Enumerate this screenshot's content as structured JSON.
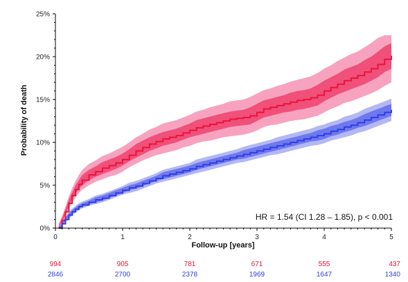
{
  "chart_data": {
    "type": "line",
    "xlabel": "Follow-up [years]",
    "ylabel": "Probability of death",
    "xlim": [
      0,
      5
    ],
    "ylim": [
      0,
      25
    ],
    "x_ticks": [
      "0",
      "1",
      "2",
      "3",
      "4",
      "5"
    ],
    "y_ticks": [
      "0%",
      "5%",
      "10%",
      "15%",
      "20%",
      "25%"
    ],
    "annotation": "HR = 1.54 (CI 1.28 – 1.85), p < 0.001",
    "grid": false,
    "series": [
      {
        "color": "#e8143c",
        "band_inner_color": "#f0507a",
        "band_outer_color": "#f7a3c0",
        "x": [
          0.05,
          0.1,
          0.15,
          0.2,
          0.25,
          0.3,
          0.35,
          0.4,
          0.5,
          0.6,
          0.7,
          0.8,
          0.9,
          1.0,
          1.1,
          1.2,
          1.3,
          1.4,
          1.5,
          1.6,
          1.7,
          1.8,
          1.9,
          2.0,
          2.1,
          2.2,
          2.3,
          2.4,
          2.5,
          2.6,
          2.7,
          2.8,
          2.9,
          3.0,
          3.1,
          3.2,
          3.3,
          3.4,
          3.5,
          3.6,
          3.7,
          3.8,
          3.9,
          4.0,
          4.1,
          4.2,
          4.3,
          4.4,
          4.5,
          4.6,
          4.7,
          4.8,
          4.9,
          5.0
        ],
        "y": [
          0.1,
          0.9,
          1.9,
          2.9,
          3.8,
          4.5,
          5.1,
          5.6,
          6.2,
          6.6,
          7.0,
          7.3,
          7.6,
          8.0,
          8.5,
          9.0,
          9.4,
          9.8,
          10.1,
          10.4,
          10.6,
          10.8,
          11.1,
          11.4,
          11.7,
          11.9,
          12.1,
          12.3,
          12.5,
          12.7,
          12.8,
          12.9,
          13.1,
          13.5,
          13.9,
          14.1,
          14.3,
          14.5,
          14.7,
          14.9,
          15.0,
          15.2,
          15.5,
          16.0,
          16.4,
          16.8,
          17.2,
          17.5,
          17.8,
          18.2,
          18.6,
          19.1,
          19.7,
          20.1
        ],
        "ci_inner_low": [
          0.0,
          0.7,
          1.6,
          2.5,
          3.4,
          4.0,
          4.6,
          5.0,
          5.6,
          6.0,
          6.3,
          6.6,
          6.9,
          7.3,
          7.8,
          8.2,
          8.6,
          9.0,
          9.3,
          9.6,
          9.8,
          10.0,
          10.3,
          10.6,
          10.8,
          11.0,
          11.2,
          11.4,
          11.6,
          11.8,
          11.9,
          12.0,
          12.1,
          12.5,
          12.9,
          13.1,
          13.3,
          13.5,
          13.6,
          13.8,
          13.9,
          14.1,
          14.3,
          14.8,
          15.2,
          15.6,
          15.9,
          16.2,
          16.5,
          16.8,
          17.2,
          17.6,
          18.2,
          18.6
        ],
        "ci_inner_high": [
          0.3,
          1.2,
          2.2,
          3.3,
          4.2,
          5.0,
          5.6,
          6.2,
          6.8,
          7.2,
          7.7,
          8.0,
          8.3,
          8.7,
          9.2,
          9.8,
          10.2,
          10.6,
          10.9,
          11.2,
          11.4,
          11.6,
          11.9,
          12.2,
          12.6,
          12.8,
          13.0,
          13.2,
          13.4,
          13.6,
          13.7,
          13.8,
          14.1,
          14.5,
          14.9,
          15.1,
          15.3,
          15.5,
          15.8,
          16.0,
          16.1,
          16.3,
          16.7,
          17.2,
          17.6,
          18.0,
          18.5,
          18.8,
          19.1,
          19.6,
          20.0,
          20.6,
          21.2,
          21.6
        ],
        "ci_outer_low": [
          0.0,
          0.5,
          1.3,
          2.2,
          3.0,
          3.6,
          4.1,
          4.5,
          5.0,
          5.4,
          5.7,
          6.0,
          6.2,
          6.6,
          7.1,
          7.5,
          7.9,
          8.2,
          8.5,
          8.7,
          8.9,
          9.1,
          9.4,
          9.6,
          9.9,
          10.1,
          10.2,
          10.4,
          10.6,
          10.7,
          10.8,
          10.9,
          11.1,
          11.4,
          11.8,
          12.0,
          12.1,
          12.3,
          12.5,
          12.6,
          12.7,
          12.9,
          13.1,
          13.5,
          13.9,
          14.2,
          14.6,
          14.8,
          15.1,
          15.4,
          15.7,
          16.1,
          16.6,
          17.0
        ],
        "ci_outer_high": [
          0.5,
          1.4,
          2.5,
          3.7,
          4.7,
          5.5,
          6.2,
          6.8,
          7.5,
          7.9,
          8.4,
          8.7,
          9.1,
          9.5,
          10.0,
          10.6,
          11.0,
          11.5,
          11.8,
          12.2,
          12.4,
          12.6,
          12.9,
          13.2,
          13.6,
          13.8,
          14.1,
          14.3,
          14.5,
          14.8,
          14.9,
          15.0,
          15.3,
          15.7,
          16.1,
          16.3,
          16.6,
          16.8,
          17.1,
          17.3,
          17.5,
          17.7,
          18.1,
          18.6,
          19.0,
          19.5,
          19.9,
          20.3,
          20.6,
          21.1,
          21.6,
          22.2,
          22.5,
          22.5
        ],
        "at_risk": [
          "994",
          "905",
          "781",
          "671",
          "555",
          "437"
        ]
      },
      {
        "color": "#2e3de6",
        "band_inner_color": "#6f78ee",
        "band_outer_color": "#b3b8f5",
        "x": [
          0.05,
          0.1,
          0.15,
          0.2,
          0.25,
          0.3,
          0.35,
          0.4,
          0.5,
          0.6,
          0.7,
          0.8,
          0.9,
          1.0,
          1.1,
          1.2,
          1.3,
          1.4,
          1.5,
          1.6,
          1.7,
          1.8,
          1.9,
          2.0,
          2.1,
          2.2,
          2.3,
          2.4,
          2.5,
          2.6,
          2.7,
          2.8,
          2.9,
          3.0,
          3.1,
          3.2,
          3.3,
          3.4,
          3.5,
          3.6,
          3.7,
          3.8,
          3.9,
          4.0,
          4.1,
          4.2,
          4.3,
          4.4,
          4.5,
          4.6,
          4.7,
          4.8,
          4.9,
          5.0
        ],
        "y": [
          0.0,
          0.5,
          1.0,
          1.5,
          1.9,
          2.2,
          2.5,
          2.7,
          3.0,
          3.3,
          3.5,
          3.8,
          4.1,
          4.4,
          4.7,
          4.9,
          5.2,
          5.5,
          5.8,
          6.1,
          6.3,
          6.5,
          6.7,
          6.9,
          7.2,
          7.4,
          7.6,
          7.8,
          8.0,
          8.2,
          8.4,
          8.6,
          8.8,
          9.0,
          9.2,
          9.4,
          9.6,
          9.8,
          10.0,
          10.2,
          10.4,
          10.6,
          10.8,
          11.0,
          11.3,
          11.5,
          11.8,
          12.0,
          12.3,
          12.6,
          12.9,
          13.2,
          13.5,
          13.8
        ],
        "ci_inner_low": [
          0.0,
          0.4,
          0.8,
          1.3,
          1.7,
          2.0,
          2.3,
          2.5,
          2.8,
          3.0,
          3.2,
          3.5,
          3.8,
          4.1,
          4.4,
          4.6,
          4.9,
          5.2,
          5.5,
          5.7,
          5.9,
          6.1,
          6.3,
          6.5,
          6.8,
          7.0,
          7.2,
          7.4,
          7.6,
          7.8,
          8.0,
          8.1,
          8.3,
          8.5,
          8.7,
          8.9,
          9.1,
          9.3,
          9.5,
          9.7,
          9.9,
          10.1,
          10.2,
          10.4,
          10.7,
          10.9,
          11.2,
          11.4,
          11.7,
          11.9,
          12.2,
          12.5,
          12.8,
          13.1
        ],
        "ci_inner_high": [
          0.1,
          0.6,
          1.2,
          1.7,
          2.1,
          2.4,
          2.7,
          2.9,
          3.2,
          3.6,
          3.8,
          4.1,
          4.4,
          4.7,
          5.0,
          5.2,
          5.5,
          5.8,
          6.1,
          6.5,
          6.7,
          6.9,
          7.1,
          7.3,
          7.6,
          7.8,
          8.0,
          8.2,
          8.4,
          8.6,
          8.8,
          9.1,
          9.3,
          9.5,
          9.7,
          9.9,
          10.1,
          10.3,
          10.5,
          10.7,
          10.9,
          11.1,
          11.4,
          11.6,
          11.9,
          12.1,
          12.4,
          12.6,
          12.9,
          13.3,
          13.6,
          13.9,
          14.2,
          14.5
        ],
        "ci_outer_low": [
          0.0,
          0.3,
          0.7,
          1.1,
          1.5,
          1.8,
          2.1,
          2.3,
          2.6,
          2.8,
          3.0,
          3.3,
          3.6,
          3.9,
          4.1,
          4.3,
          4.6,
          4.9,
          5.2,
          5.4,
          5.6,
          5.8,
          6.0,
          6.2,
          6.4,
          6.6,
          6.8,
          7.0,
          7.2,
          7.4,
          7.6,
          7.7,
          7.9,
          8.1,
          8.3,
          8.5,
          8.6,
          8.8,
          9.0,
          9.2,
          9.4,
          9.6,
          9.7,
          9.9,
          10.2,
          10.4,
          10.6,
          10.8,
          11.1,
          11.3,
          11.6,
          11.9,
          12.2,
          12.5
        ],
        "ci_outer_high": [
          0.2,
          0.7,
          1.3,
          1.9,
          2.3,
          2.6,
          2.9,
          3.1,
          3.4,
          3.8,
          4.0,
          4.3,
          4.6,
          4.9,
          5.3,
          5.5,
          5.8,
          6.1,
          6.4,
          6.8,
          7.0,
          7.2,
          7.4,
          7.6,
          8.0,
          8.2,
          8.4,
          8.6,
          8.8,
          9.0,
          9.2,
          9.5,
          9.7,
          9.9,
          10.1,
          10.3,
          10.6,
          10.8,
          11.0,
          11.2,
          11.4,
          11.6,
          11.9,
          12.1,
          12.4,
          12.6,
          13.0,
          13.2,
          13.5,
          13.9,
          14.2,
          14.5,
          14.8,
          15.1
        ],
        "at_risk": [
          "2846",
          "2700",
          "2378",
          "1969",
          "1647",
          "1340"
        ]
      }
    ]
  }
}
